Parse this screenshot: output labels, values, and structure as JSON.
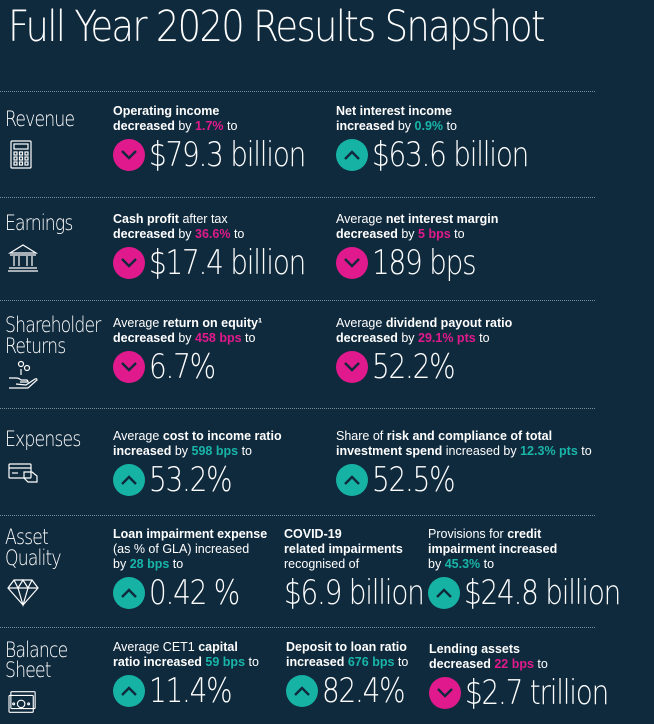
{
  "title": "Full Year 2020 Results Snapshot",
  "colors": {
    "background": "#102a3d",
    "decrease": "#e0198c",
    "increase": "#16b2a4"
  },
  "sections": {
    "revenue": {
      "label": "Revenue",
      "icon": "calculator-icon"
    },
    "earnings": {
      "label": "Earnings",
      "icon": "bank-building-icon"
    },
    "shareholder": {
      "label1": "Shareholder",
      "label2": "Returns",
      "icon": "hand-coins-icon"
    },
    "expenses": {
      "label": "Expenses",
      "icon": "payment-card-icon"
    },
    "asset": {
      "label1": "Asset",
      "label2": "Quality",
      "icon": "diamond-icon"
    },
    "balance": {
      "label1": "Balance",
      "label2": "Sheet",
      "icon": "cash-note-icon"
    }
  },
  "metrics": {
    "op_income": {
      "bold1": "Operating income",
      "bold2": "decreased",
      "mid": " by ",
      "change": "1.7%",
      "post": " to",
      "direction": "down",
      "value": "$79.3 billion"
    },
    "nii": {
      "bold1": "Net interest income",
      "bold2": "increased",
      "mid": " by ",
      "change": "0.9%",
      "post": " to",
      "direction": "up",
      "value": "$63.6 billion"
    },
    "cash_profit": {
      "bold1": "Cash profit",
      "pre": " after tax",
      "bold2": "decreased",
      "mid": " by ",
      "change": "36.6%",
      "post": " to",
      "direction": "down",
      "value": "$17.4 billion"
    },
    "nim": {
      "pre": "Average ",
      "bold1": "net interest margin",
      "bold2": "decreased",
      "mid": " by ",
      "change": "5 bps",
      "post": " to",
      "direction": "down",
      "value": "189 bps"
    },
    "roe": {
      "pre": "Average ",
      "bold1": "return on equity¹",
      "bold2": "decreased",
      "mid": " by ",
      "change": "458 bps",
      "post": " to",
      "direction": "down",
      "value": "6.7%"
    },
    "payout": {
      "pre": "Average ",
      "bold1": "dividend payout ratio",
      "bold2": "decreased",
      "mid": " by ",
      "change": "29.1% pts",
      "post": " to",
      "direction": "down",
      "value": "52.2%"
    },
    "cti": {
      "pre": "Average ",
      "bold1": "cost to income ratio",
      "bold2": "increased",
      "mid": " by ",
      "change": "598 bps",
      "post": " to",
      "direction": "up",
      "value": "53.2%"
    },
    "risk": {
      "pre": "Share of ",
      "bold1": "risk and compliance of total",
      "bold2": "investment spend",
      "mid": " increased by ",
      "change": "12.3% pts",
      "post": " to",
      "direction": "up",
      "value": "52.5%"
    },
    "lie": {
      "bold1": "Loan impairment expense",
      "line2": "(as % of GLA) increased",
      "pre3": "by ",
      "change": "28 bps",
      "post": " to",
      "direction": "up",
      "value": "0.42 %"
    },
    "covid": {
      "bold1": "COVID-19",
      "bold2": "related impairments",
      "line3": "recognised of",
      "value": "$6.9 billion"
    },
    "provisions": {
      "pre": "Provisions for ",
      "bold1": "credit",
      "bold2": "impairment increased",
      "pre3": "by ",
      "change": "45.3%",
      "post": " to",
      "direction": "up",
      "value": "$24.8 billion"
    },
    "cet1": {
      "pre": "Average CET1 ",
      "bold1": "capital",
      "bold2": "ratio increased",
      "mid": " ",
      "change": "59 bps",
      "post": " to",
      "direction": "up",
      "value": "11.4%"
    },
    "deposit": {
      "bold1": "Deposit to loan ratio",
      "bold2": "increased",
      "mid": " ",
      "change": "676 bps",
      "post": " to",
      "direction": "up",
      "value": "82.4%"
    },
    "lending": {
      "bold1": "Lending assets",
      "bold2": "decreased",
      "mid": " ",
      "change": "22 bps",
      "post": " to",
      "direction": "down",
      "value": "$2.7 trillion"
    }
  }
}
